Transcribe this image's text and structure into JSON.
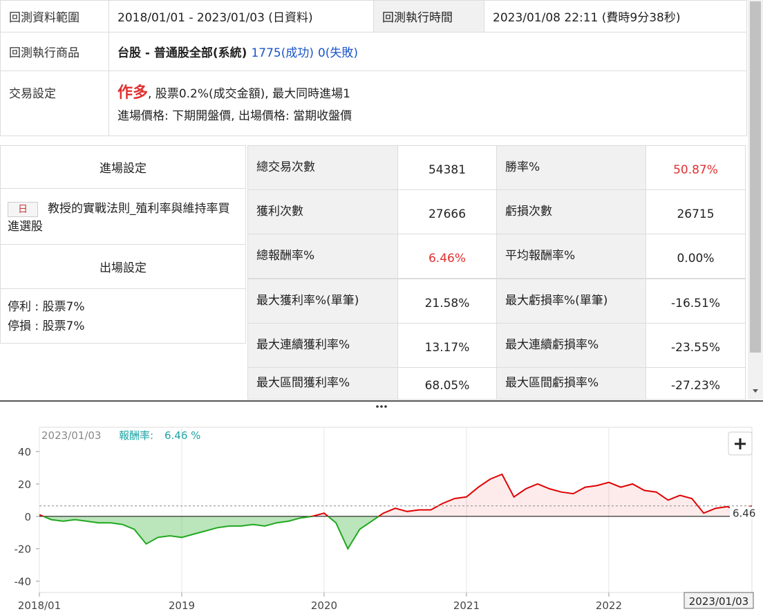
{
  "summary": {
    "range_label": "回測資料範圍",
    "range_value": "2018/01/01 - 2023/01/03 (日資料)",
    "time_label": "回測執行時間",
    "time_value": "2023/01/08 22:11 (費時9分38秒)",
    "product_label": "回測執行商品",
    "product_value": "台股 - 普通股全部(系統)",
    "product_success": "1775(成功)",
    "product_fail": "0(失敗)",
    "trade_label": "交易設定",
    "trade_direction": "作多",
    "trade_cost": ", 股票0.2%(成交金額), 最大同時進場1",
    "trade_price": "進場價格: 下期開盤價, 出場價格: 當期收盤價"
  },
  "settings": {
    "entry_title": "進場設定",
    "entry_tag": "日",
    "entry_rule": "教授的實戰法則_殖利率與維持率買進選股",
    "exit_title": "出場設定",
    "exit_rules": [
      "停利 : 股票7%",
      "停損 : 股票7%"
    ]
  },
  "stats": {
    "rows": [
      [
        "總交易次數",
        "54381",
        "勝率%",
        "50.87%"
      ],
      [
        "獲利次數",
        "27666",
        "虧損次數",
        "26715"
      ],
      [
        "總報酬率%",
        "6.46%",
        "平均報酬率%",
        "0.00%"
      ],
      [
        "最大獲利率%(單筆)",
        "21.58%",
        "最大虧損率%(單筆)",
        "-16.51%"
      ],
      [
        "最大連續獲利率%",
        "13.17%",
        "最大連續虧損率%",
        "-23.55%"
      ],
      [
        "最大區間獲利率%",
        "68.05%",
        "最大區間虧損率%",
        "-27.23%"
      ]
    ]
  },
  "chart": {
    "type": "line",
    "header_date": "2023/01/03",
    "header_label": "報酬率:",
    "header_value": "6.46 %",
    "x": [
      "2018/01",
      "2018/02",
      "2018/03",
      "2018/04",
      "2018/05",
      "2018/06",
      "2018/07",
      "2018/08",
      "2018/09",
      "2018/10",
      "2018/11",
      "2018/12",
      "2019/01",
      "2019/02",
      "2019/03",
      "2019/04",
      "2019/05",
      "2019/06",
      "2019/07",
      "2019/08",
      "2019/09",
      "2019/10",
      "2019/11",
      "2019/12",
      "2020/01",
      "2020/02",
      "2020/03",
      "2020/04",
      "2020/05",
      "2020/06",
      "2020/07",
      "2020/08",
      "2020/09",
      "2020/10",
      "2020/11",
      "2020/12",
      "2021/01",
      "2021/02",
      "2021/03",
      "2021/04",
      "2021/05",
      "2021/06",
      "2021/07",
      "2021/08",
      "2021/09",
      "2021/10",
      "2021/11",
      "2021/12",
      "2022/01",
      "2022/02",
      "2022/03",
      "2022/04",
      "2022/05",
      "2022/06",
      "2022/07",
      "2022/08",
      "2022/09",
      "2022/10",
      "2022/11",
      "2022/12",
      "2023/01/03"
    ],
    "values": [
      1,
      -2,
      -3,
      -2,
      -3,
      -4,
      -4,
      -5,
      -8,
      -17,
      -13,
      -12,
      -13,
      -11,
      -9,
      -7,
      -6,
      -6,
      -5,
      -6,
      -4,
      -3,
      -1,
      0,
      2,
      -4,
      -20,
      -8,
      -3,
      2,
      5,
      3,
      4,
      4,
      8,
      11,
      12,
      18,
      23,
      26,
      12,
      17,
      20,
      17,
      15,
      14,
      18,
      19,
      21,
      18,
      20,
      16,
      15,
      10,
      13,
      11,
      2,
      5,
      6,
      3,
      6.46
    ],
    "xlim": [
      "2018/01",
      "2023/01/03"
    ],
    "xticks": [
      "2018/01",
      "2019",
      "2020",
      "2021",
      "2022"
    ],
    "ylim": [
      -47,
      55
    ],
    "yticks": [
      -40,
      -20,
      0,
      20,
      40
    ],
    "positive_color": "#e00000",
    "negative_color": "#1fa81f"
  }
}
